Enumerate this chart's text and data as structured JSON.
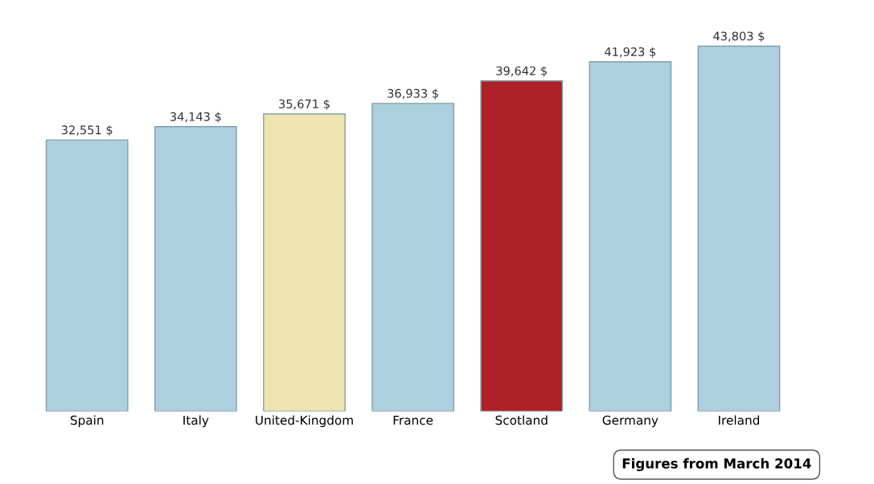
{
  "chart_data": {
    "type": "bar",
    "categories": [
      "Spain",
      "Italy",
      "United-Kingdom",
      "France",
      "Scotland",
      "Germany",
      "Ireland"
    ],
    "values": [
      32551,
      34143,
      35671,
      36933,
      39642,
      41923,
      43803
    ],
    "value_labels": [
      "32,551 $",
      "34,143 $",
      "35,671 $",
      "36,933 $",
      "39,642 $",
      "41,923 $",
      "43,803 $"
    ],
    "colors": [
      "#aecfdf",
      "#aecfdf",
      "#efe4b0",
      "#aecfdf",
      "#ad2126",
      "#aecfdf",
      "#aecfdf"
    ],
    "annotations": [
      "Figures from March 2014"
    ],
    "tick_labels": "x",
    "grid": false
  }
}
